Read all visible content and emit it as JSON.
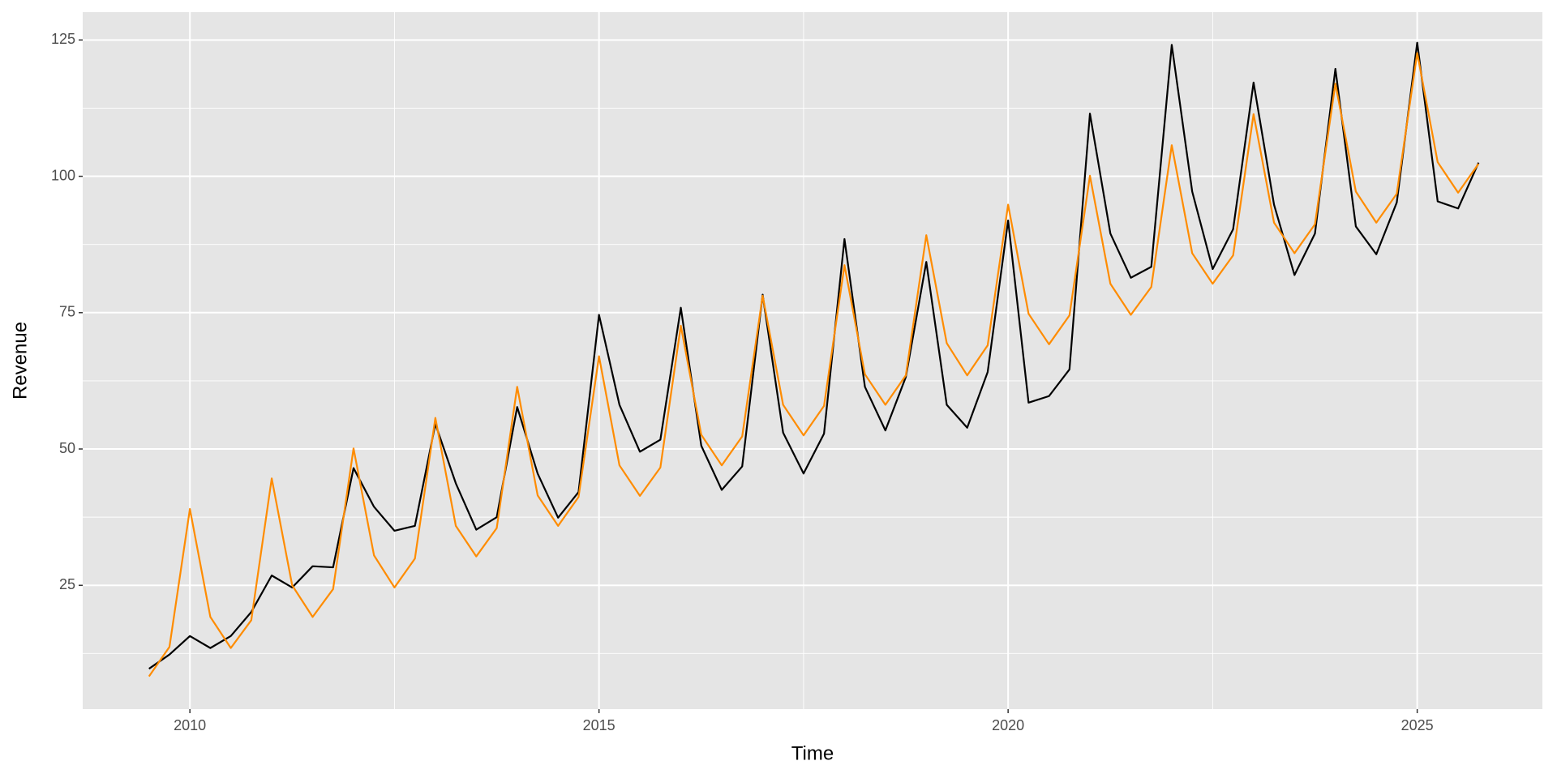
{
  "chart_data": {
    "type": "line",
    "x_label": "Time",
    "y_label": "Revenue",
    "x": [
      2009.5,
      2009.75,
      2010,
      2010.25,
      2010.5,
      2010.75,
      2011,
      2011.25,
      2011.5,
      2011.75,
      2012,
      2012.25,
      2012.5,
      2012.75,
      2013,
      2013.25,
      2013.5,
      2013.75,
      2014,
      2014.25,
      2014.5,
      2014.75,
      2015,
      2015.25,
      2015.5,
      2015.75,
      2016,
      2016.25,
      2016.5,
      2016.75,
      2017,
      2017.25,
      2017.5,
      2017.75,
      2018,
      2018.25,
      2018.5,
      2018.75,
      2019,
      2019.25,
      2019.5,
      2019.75,
      2020,
      2020.25,
      2020.5,
      2020.75,
      2021,
      2021.25,
      2021.5,
      2021.75,
      2022,
      2022.25,
      2022.5,
      2022.75,
      2023,
      2023.25,
      2023.5,
      2023.75,
      2024,
      2024.25,
      2024.5,
      2024.75,
      2025,
      2025.25,
      2025.5,
      2025.75
    ],
    "series": [
      {
        "color": "#000000",
        "values": [
          9.7,
          12.3,
          15.7,
          13.5,
          15.7,
          20.1,
          26.8,
          24.6,
          28.5,
          28.3,
          46.5,
          39.4,
          35.0,
          35.9,
          54.6,
          43.7,
          35.2,
          37.5,
          57.7,
          45.5,
          37.4,
          42.1,
          74.6,
          58.1,
          49.5,
          51.7,
          75.9,
          50.6,
          42.5,
          46.8,
          78.3,
          53.0,
          45.5,
          52.8,
          88.5,
          61.4,
          53.4,
          63.2,
          84.3,
          58.1,
          53.9,
          64.1,
          91.9,
          58.5,
          59.7,
          64.6,
          111.5,
          89.5,
          81.4,
          83.4,
          124.1,
          97.2,
          83.0,
          90.3,
          117.2,
          94.8,
          81.9,
          89.5,
          119.7,
          90.8,
          85.7,
          95.2,
          124.5,
          95.4,
          94.1,
          102.5
        ]
      },
      {
        "color": "#ff8c00",
        "values": [
          8.3,
          13.7,
          39.0,
          19.2,
          13.5,
          18.6,
          44.6,
          25.0,
          19.2,
          24.3,
          50.1,
          30.5,
          24.6,
          29.9,
          55.7,
          35.9,
          30.3,
          35.5,
          61.4,
          41.5,
          35.9,
          41.2,
          67.0,
          47.0,
          41.4,
          46.6,
          72.6,
          52.6,
          47.0,
          52.3,
          78.1,
          58.1,
          52.5,
          57.9,
          83.7,
          63.7,
          58.1,
          63.5,
          89.2,
          69.4,
          63.5,
          69.0,
          94.8,
          74.8,
          69.2,
          74.5,
          100.1,
          80.3,
          74.6,
          79.7,
          105.7,
          85.9,
          80.3,
          85.5,
          111.4,
          91.5,
          85.9,
          91.2,
          117.0,
          97.2,
          91.5,
          96.8,
          122.6,
          102.6,
          97.0,
          102.3
        ]
      }
    ],
    "xlim": [
      2008.69,
      2026.53
    ],
    "ylim": [
      2.3,
      130.1
    ],
    "xticks": [
      2010,
      2015,
      2020,
      2025
    ],
    "yticks": [
      25,
      50,
      75,
      100,
      125
    ],
    "xminorticks": [
      2012.5,
      2017.5,
      2022.5
    ],
    "yminorticks": [
      12.5,
      37.5,
      62.5,
      87.5,
      112.5
    ],
    "grid": true,
    "background": "#e5e5e5"
  }
}
